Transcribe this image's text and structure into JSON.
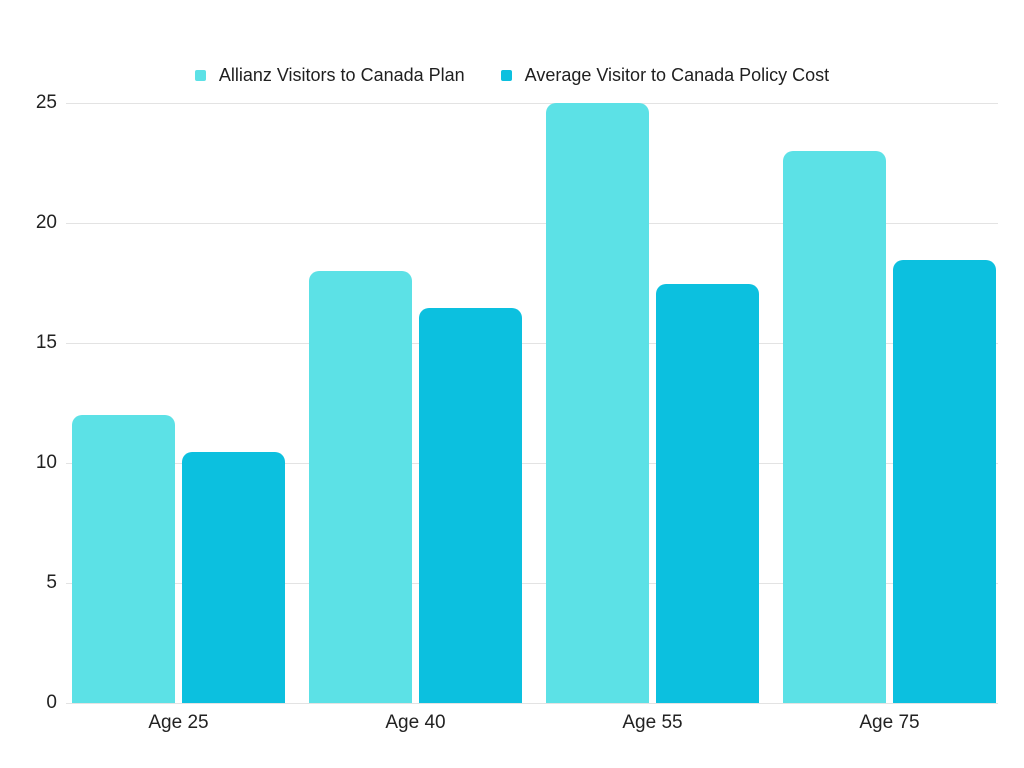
{
  "chart_data": {
    "type": "bar",
    "title": "",
    "categories": [
      "Age 25",
      "Age 40",
      "Age 55",
      "Age 75"
    ],
    "series": [
      {
        "name": "Allianz Visitors to Canada Plan",
        "color": "#5CE1E6",
        "values": [
          12,
          18,
          25,
          23
        ]
      },
      {
        "name": "Average Visitor to Canada Policy Cost",
        "color": "#0CC0DF",
        "values": [
          10.45,
          16.45,
          17.45,
          18.45
        ]
      }
    ],
    "ylim": [
      0,
      25
    ],
    "yticks": [
      0,
      5,
      10,
      15,
      20,
      25
    ],
    "grid": true,
    "legend_position": "top",
    "colors": {
      "background": "#FFFFFF",
      "gridline": "#E3E3E3",
      "text": "#1F1F1F"
    }
  }
}
